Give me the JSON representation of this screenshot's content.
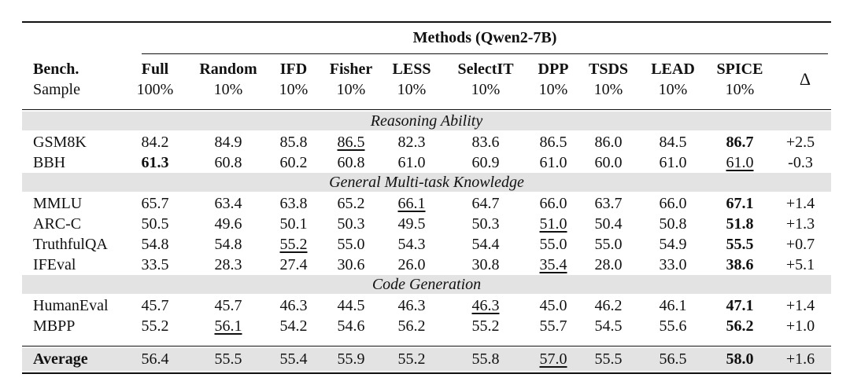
{
  "table": {
    "group_header": "Methods (Qwen2-7B)",
    "first_col": {
      "name": "Bench.",
      "sub": "Sample"
    },
    "delta_header": "Δ",
    "columns": [
      {
        "name": "Full",
        "pct": "100%"
      },
      {
        "name": "Random",
        "pct": "10%"
      },
      {
        "name": "IFD",
        "pct": "10%"
      },
      {
        "name": "Fisher",
        "pct": "10%"
      },
      {
        "name": "LESS",
        "pct": "10%"
      },
      {
        "name": "SelectIT",
        "pct": "10%"
      },
      {
        "name": "DPP",
        "pct": "10%"
      },
      {
        "name": "TSDS",
        "pct": "10%"
      },
      {
        "name": "LEAD",
        "pct": "10%"
      },
      {
        "name": "SPICE",
        "pct": "10%"
      }
    ],
    "sections": [
      {
        "title": "Reasoning Ability",
        "rows": [
          {
            "bench": "GSM8K",
            "values": [
              "84.2",
              "84.9",
              "85.8",
              "86.5",
              "82.3",
              "83.6",
              "86.5",
              "86.0",
              "84.5",
              "86.7"
            ],
            "delta": "+2.5",
            "bold": [
              9
            ],
            "underline": [
              3
            ]
          },
          {
            "bench": "BBH",
            "values": [
              "61.3",
              "60.8",
              "60.2",
              "60.8",
              "61.0",
              "60.9",
              "61.0",
              "60.0",
              "61.0",
              "61.0"
            ],
            "delta": "-0.3",
            "bold": [
              0
            ],
            "underline": [
              9
            ]
          }
        ]
      },
      {
        "title": "General Multi-task Knowledge",
        "rows": [
          {
            "bench": "MMLU",
            "values": [
              "65.7",
              "63.4",
              "63.8",
              "65.2",
              "66.1",
              "64.7",
              "66.0",
              "63.7",
              "66.0",
              "67.1"
            ],
            "delta": "+1.4",
            "bold": [
              9
            ],
            "underline": [
              4
            ]
          },
          {
            "bench": "ARC-C",
            "values": [
              "50.5",
              "49.6",
              "50.1",
              "50.3",
              "49.5",
              "50.3",
              "51.0",
              "50.4",
              "50.8",
              "51.8"
            ],
            "delta": "+1.3",
            "bold": [
              9
            ],
            "underline": [
              6
            ]
          },
          {
            "bench": "TruthfulQA",
            "values": [
              "54.8",
              "54.8",
              "55.2",
              "55.0",
              "54.3",
              "54.4",
              "55.0",
              "55.0",
              "54.9",
              "55.5"
            ],
            "delta": "+0.7",
            "bold": [
              9
            ],
            "underline": [
              2
            ]
          },
          {
            "bench": "IFEval",
            "values": [
              "33.5",
              "28.3",
              "27.4",
              "30.6",
              "26.0",
              "30.8",
              "35.4",
              "28.0",
              "33.0",
              "38.6"
            ],
            "delta": "+5.1",
            "bold": [
              9
            ],
            "underline": [
              6
            ]
          }
        ]
      },
      {
        "title": "Code Generation",
        "rows": [
          {
            "bench": "HumanEval",
            "values": [
              "45.7",
              "45.7",
              "46.3",
              "44.5",
              "46.3",
              "46.3",
              "45.0",
              "46.2",
              "46.1",
              "47.1"
            ],
            "delta": "+1.4",
            "bold": [
              9
            ],
            "underline": [
              5
            ]
          },
          {
            "bench": "MBPP",
            "values": [
              "55.2",
              "56.1",
              "54.2",
              "54.6",
              "56.2",
              "55.2",
              "55.7",
              "54.5",
              "55.6",
              "56.2"
            ],
            "delta": "+1.0",
            "bold": [
              9
            ],
            "underline": [
              1
            ]
          }
        ]
      }
    ],
    "average": {
      "bench": "Average",
      "values": [
        "56.4",
        "55.5",
        "55.4",
        "55.9",
        "55.2",
        "55.8",
        "57.0",
        "55.5",
        "56.5",
        "58.0"
      ],
      "delta": "+1.6",
      "bold": [
        9
      ],
      "underline": [
        6
      ]
    }
  }
}
